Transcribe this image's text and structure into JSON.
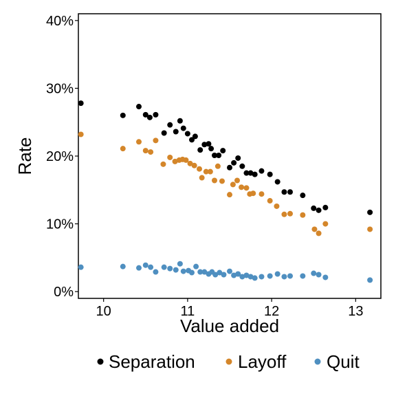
{
  "chart_data": {
    "type": "scatter",
    "xlabel": "Value added",
    "ylabel": "Rate",
    "xlim": [
      9.7,
      13.3
    ],
    "ylim": [
      -1,
      41
    ],
    "x_ticks": [
      10,
      11,
      12,
      13
    ],
    "y_ticks": [
      0,
      10,
      20,
      30,
      40
    ],
    "y_tick_labels": [
      "0%",
      "10%",
      "20%",
      "30%",
      "40%"
    ],
    "grid": false,
    "legend_position": "bottom",
    "series": [
      {
        "name": "Separation",
        "color": "#000000",
        "points": [
          [
            9.73,
            27.8
          ],
          [
            10.23,
            26.0
          ],
          [
            10.42,
            27.3
          ],
          [
            10.5,
            26.1
          ],
          [
            10.55,
            25.7
          ],
          [
            10.62,
            26.1
          ],
          [
            10.72,
            23.4
          ],
          [
            10.79,
            24.6
          ],
          [
            10.86,
            23.6
          ],
          [
            10.91,
            25.2
          ],
          [
            10.95,
            24.1
          ],
          [
            11.0,
            23.3
          ],
          [
            11.05,
            22.4
          ],
          [
            11.09,
            22.9
          ],
          [
            11.15,
            20.9
          ],
          [
            11.2,
            21.7
          ],
          [
            11.25,
            21.8
          ],
          [
            11.28,
            21.1
          ],
          [
            11.32,
            20.1
          ],
          [
            11.37,
            20.1
          ],
          [
            11.42,
            20.8
          ],
          [
            11.5,
            18.3
          ],
          [
            11.55,
            19.0
          ],
          [
            11.6,
            19.7
          ],
          [
            11.65,
            18.5
          ],
          [
            11.7,
            17.5
          ],
          [
            11.75,
            17.5
          ],
          [
            11.8,
            17.3
          ],
          [
            11.88,
            17.8
          ],
          [
            11.98,
            17.3
          ],
          [
            12.07,
            16.2
          ],
          [
            12.15,
            14.7
          ],
          [
            12.22,
            14.7
          ],
          [
            12.37,
            14.2
          ],
          [
            12.5,
            12.3
          ],
          [
            12.56,
            12.0
          ],
          [
            12.64,
            12.4
          ],
          [
            13.17,
            11.7
          ]
        ]
      },
      {
        "name": "Layoff",
        "color": "#D4862A",
        "points": [
          [
            9.73,
            23.2
          ],
          [
            10.23,
            21.1
          ],
          [
            10.42,
            22.1
          ],
          [
            10.5,
            20.8
          ],
          [
            10.56,
            20.6
          ],
          [
            10.62,
            22.3
          ],
          [
            10.71,
            18.8
          ],
          [
            10.79,
            19.8
          ],
          [
            10.85,
            19.2
          ],
          [
            10.9,
            19.4
          ],
          [
            10.94,
            19.5
          ],
          [
            10.98,
            19.4
          ],
          [
            11.03,
            18.9
          ],
          [
            11.08,
            18.6
          ],
          [
            11.14,
            18.1
          ],
          [
            11.17,
            16.8
          ],
          [
            11.22,
            17.7
          ],
          [
            11.27,
            17.7
          ],
          [
            11.32,
            16.4
          ],
          [
            11.36,
            18.5
          ],
          [
            11.41,
            16.3
          ],
          [
            11.5,
            14.3
          ],
          [
            11.54,
            15.8
          ],
          [
            11.59,
            16.4
          ],
          [
            11.64,
            15.4
          ],
          [
            11.7,
            15.3
          ],
          [
            11.74,
            14.4
          ],
          [
            11.78,
            14.5
          ],
          [
            11.88,
            14.4
          ],
          [
            11.98,
            13.4
          ],
          [
            12.06,
            12.6
          ],
          [
            12.15,
            11.4
          ],
          [
            12.22,
            11.5
          ],
          [
            12.37,
            11.3
          ],
          [
            12.51,
            9.2
          ],
          [
            12.56,
            8.6
          ],
          [
            12.64,
            10.0
          ],
          [
            13.17,
            9.2
          ]
        ]
      },
      {
        "name": "Quit",
        "color": "#4F8FC0",
        "points": [
          [
            9.73,
            3.6
          ],
          [
            10.23,
            3.7
          ],
          [
            10.42,
            3.5
          ],
          [
            10.5,
            3.9
          ],
          [
            10.56,
            3.6
          ],
          [
            10.62,
            2.9
          ],
          [
            10.72,
            3.6
          ],
          [
            10.79,
            3.4
          ],
          [
            10.86,
            3.2
          ],
          [
            10.91,
            4.1
          ],
          [
            10.95,
            3.0
          ],
          [
            11.01,
            3.1
          ],
          [
            11.05,
            2.8
          ],
          [
            11.1,
            3.7
          ],
          [
            11.15,
            2.9
          ],
          [
            11.2,
            2.9
          ],
          [
            11.25,
            2.6
          ],
          [
            11.29,
            2.9
          ],
          [
            11.33,
            2.5
          ],
          [
            11.38,
            2.8
          ],
          [
            11.43,
            2.5
          ],
          [
            11.5,
            3.0
          ],
          [
            11.55,
            2.4
          ],
          [
            11.6,
            2.6
          ],
          [
            11.65,
            2.2
          ],
          [
            11.7,
            2.4
          ],
          [
            11.75,
            2.2
          ],
          [
            11.8,
            2.0
          ],
          [
            11.88,
            2.2
          ],
          [
            11.98,
            2.3
          ],
          [
            12.07,
            2.6
          ],
          [
            12.15,
            2.2
          ],
          [
            12.22,
            2.3
          ],
          [
            12.37,
            2.3
          ],
          [
            12.5,
            2.7
          ],
          [
            12.56,
            2.5
          ],
          [
            12.64,
            2.1
          ],
          [
            13.17,
            1.7
          ]
        ]
      }
    ]
  }
}
